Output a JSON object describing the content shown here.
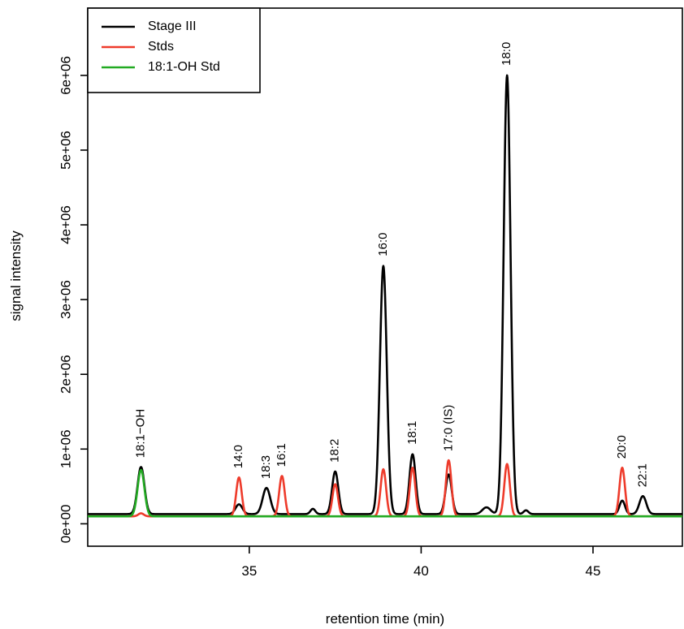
{
  "chart_data": {
    "type": "line",
    "title": "",
    "xlabel": "retention time (min)",
    "ylabel": "signal intensity",
    "xlim": [
      30.3,
      47.6
    ],
    "ylim": [
      -300000,
      6900000
    ],
    "x_ticks": [
      35,
      40,
      45
    ],
    "x_tick_labels": [
      "35",
      "40",
      "45"
    ],
    "y_ticks": [
      0,
      1000000,
      2000000,
      3000000,
      4000000,
      5000000,
      6000000
    ],
    "y_tick_labels": [
      "0e+00",
      "1e+06",
      "2e+06",
      "3e+06",
      "4e+06",
      "5e+06",
      "6e+06"
    ],
    "grid": false,
    "legend_position": "top-left",
    "series": [
      {
        "name": "Stage III",
        "color": "#000000",
        "baseline": 130000,
        "peaks": [
          {
            "x": 31.85,
            "y": 760000,
            "w": 0.1
          },
          {
            "x": 34.7,
            "y": 260000,
            "w": 0.1
          },
          {
            "x": 35.5,
            "y": 480000,
            "w": 0.11
          },
          {
            "x": 36.85,
            "y": 200000,
            "w": 0.07
          },
          {
            "x": 37.5,
            "y": 700000,
            "w": 0.09
          },
          {
            "x": 38.9,
            "y": 3450000,
            "w": 0.1
          },
          {
            "x": 39.75,
            "y": 930000,
            "w": 0.09
          },
          {
            "x": 40.8,
            "y": 660000,
            "w": 0.09
          },
          {
            "x": 41.9,
            "y": 220000,
            "w": 0.12
          },
          {
            "x": 42.5,
            "y": 6000000,
            "w": 0.1
          },
          {
            "x": 43.05,
            "y": 180000,
            "w": 0.07
          },
          {
            "x": 45.85,
            "y": 310000,
            "w": 0.08
          },
          {
            "x": 46.45,
            "y": 370000,
            "w": 0.1
          }
        ]
      },
      {
        "name": "Stds",
        "color": "#ee3b2b",
        "baseline": 100000,
        "peaks": [
          {
            "x": 31.85,
            "y": 140000,
            "w": 0.08
          },
          {
            "x": 34.7,
            "y": 620000,
            "w": 0.08
          },
          {
            "x": 35.95,
            "y": 640000,
            "w": 0.08
          },
          {
            "x": 37.5,
            "y": 530000,
            "w": 0.08
          },
          {
            "x": 38.9,
            "y": 730000,
            "w": 0.08
          },
          {
            "x": 39.75,
            "y": 750000,
            "w": 0.08
          },
          {
            "x": 40.8,
            "y": 850000,
            "w": 0.08
          },
          {
            "x": 42.5,
            "y": 800000,
            "w": 0.08
          },
          {
            "x": 45.85,
            "y": 750000,
            "w": 0.08
          }
        ]
      },
      {
        "name": "18:1-OH Std",
        "color": "#22aa22",
        "baseline": 100000,
        "peaks": [
          {
            "x": 31.85,
            "y": 720000,
            "w": 0.1
          }
        ]
      }
    ],
    "annotations": [
      {
        "text": "18:1−OH",
        "x": 31.85,
        "y": 880000
      },
      {
        "text": "14:0",
        "x": 34.7,
        "y": 740000
      },
      {
        "text": "18:3",
        "x": 35.5,
        "y": 600000
      },
      {
        "text": "16:1",
        "x": 35.95,
        "y": 760000
      },
      {
        "text": "18:2",
        "x": 37.5,
        "y": 820000
      },
      {
        "text": "16:0",
        "x": 38.9,
        "y": 3580000
      },
      {
        "text": "18:1",
        "x": 39.75,
        "y": 1060000
      },
      {
        "text": "17:0 (IS)",
        "x": 40.8,
        "y": 970000
      },
      {
        "text": "18:0",
        "x": 42.5,
        "y": 6130000
      },
      {
        "text": "20:0",
        "x": 45.85,
        "y": 870000
      },
      {
        "text": "22:1",
        "x": 46.45,
        "y": 490000
      }
    ]
  }
}
